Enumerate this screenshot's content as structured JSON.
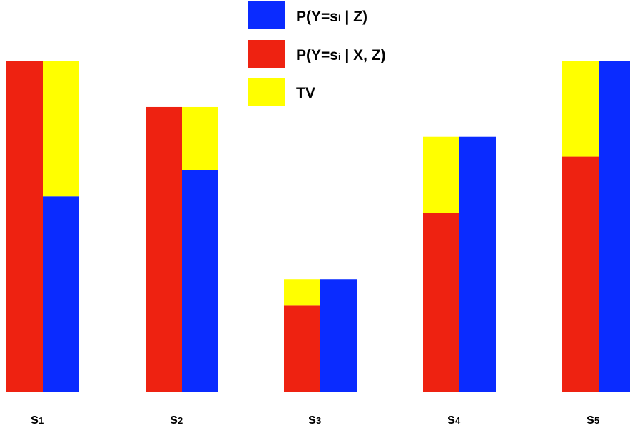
{
  "chart_data": {
    "type": "bar",
    "categories": [
      {
        "base": "s",
        "sub": "1"
      },
      {
        "base": "s",
        "sub": "2"
      },
      {
        "base": "s",
        "sub": "3"
      },
      {
        "base": "s",
        "sub": "4"
      },
      {
        "base": "s",
        "sub": "5"
      }
    ],
    "series": [
      {
        "name": "P(Y=si | X, Z)",
        "name_parts": {
          "pre": "P(Y=s",
          "sub": "i",
          "post": " | X, Z)"
        },
        "color": "#ee2211",
        "values": [
          1.0,
          0.86,
          0.26,
          0.54,
          0.71
        ]
      },
      {
        "name": "P(Y=si | Z)",
        "name_parts": {
          "pre": "P(Y=s",
          "sub": "i",
          "post": " | Z)"
        },
        "color": "#0a2bff",
        "values": [
          0.59,
          0.67,
          0.34,
          0.77,
          1.0
        ]
      }
    ],
    "difference": {
      "name": "TV",
      "color": "#ffff00",
      "values": [
        0.41,
        0.19,
        0.08,
        0.23,
        0.29
      ]
    },
    "legend_order": [
      "P(Y=si | Z)",
      "P(Y=si | X, Z)",
      "TV"
    ],
    "legend_position": "top-center",
    "ylim": [
      0,
      1.0
    ],
    "axes_visible": false,
    "grid": false,
    "title": "",
    "xlabel": "",
    "ylabel": ""
  }
}
